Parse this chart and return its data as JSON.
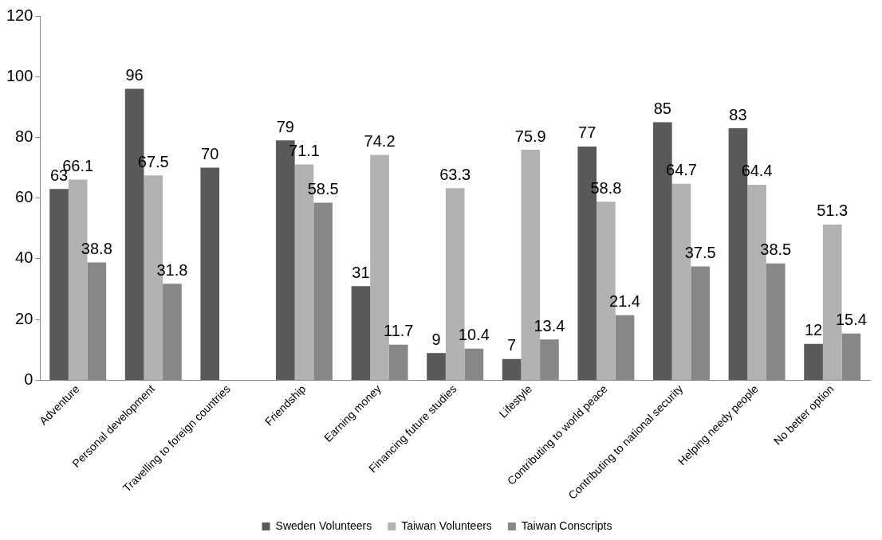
{
  "chart_data": {
    "type": "bar",
    "categories": [
      "Adventure",
      "Personal development",
      "Travelling to foreign countries",
      "Friendship",
      "Earning money",
      "Financing future studies",
      "Lifestyle",
      "Contributing to world peace",
      "Contributing to national security",
      "Helping needy people",
      "No better option"
    ],
    "series": [
      {
        "name": "Sweden Volunteers",
        "color": "#595959",
        "values": [
          63,
          96,
          70,
          79,
          31,
          9,
          7,
          77,
          85,
          83,
          12
        ]
      },
      {
        "name": "Taiwan Volunteers",
        "color": "#b2b2b2",
        "values": [
          66.1,
          67.5,
          null,
          71.1,
          74.2,
          63.3,
          75.9,
          58.8,
          64.7,
          64.4,
          51.3
        ]
      },
      {
        "name": "Taiwan Conscripts",
        "color": "#878787",
        "values": [
          38.8,
          31.8,
          null,
          58.5,
          11.7,
          10.4,
          13.4,
          21.4,
          37.5,
          38.5,
          15.4
        ]
      }
    ],
    "ylim": [
      0,
      120
    ],
    "yticks": [
      0,
      20,
      40,
      60,
      80,
      100,
      120
    ],
    "grid": false,
    "legend": "bottom",
    "data_labels": true
  }
}
